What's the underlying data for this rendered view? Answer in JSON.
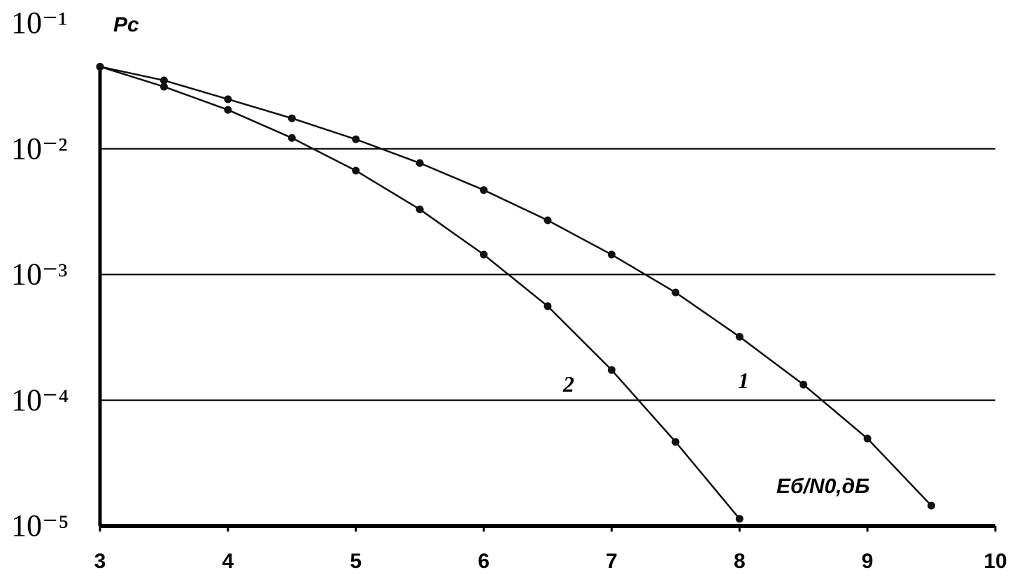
{
  "chart_data": {
    "type": "line",
    "y_label": "Pс",
    "x_label": "Eб/N0,дБ",
    "log_y": true,
    "grid": true,
    "xlim": [
      3,
      10
    ],
    "xticks": [
      3,
      4,
      5,
      6,
      7,
      8,
      9,
      10
    ],
    "ylim": [
      1e-05,
      0.1
    ],
    "yticks": [
      {
        "value": 0.1,
        "label": "10⁻¹"
      },
      {
        "value": 0.01,
        "label": "10⁻²"
      },
      {
        "value": 0.001,
        "label": "10⁻³"
      },
      {
        "value": 0.0001,
        "label": "10⁻⁴"
      },
      {
        "value": 1e-05,
        "label": "10⁻⁵"
      }
    ],
    "x": [
      3,
      3.5,
      4,
      4.5,
      5,
      5.5,
      6,
      6.5,
      7,
      7.5,
      8,
      8.5,
      9,
      9.5
    ],
    "series": [
      {
        "name": "1",
        "color": "#111111",
        "values": [
          0.045,
          0.035,
          0.0248,
          0.0175,
          0.0119,
          0.0077,
          0.0047,
          0.0027,
          0.00144,
          0.00072,
          0.00032,
          0.000133,
          4.96e-05,
          1.45e-05
        ]
      },
      {
        "name": "2",
        "color": "#111111",
        "values": [
          0.045,
          0.0312,
          0.0204,
          0.0122,
          0.0067,
          0.0033,
          0.00144,
          0.00056,
          0.000174,
          4.66e-05,
          1.14e-05,
          null,
          null,
          null
        ]
      }
    ]
  }
}
